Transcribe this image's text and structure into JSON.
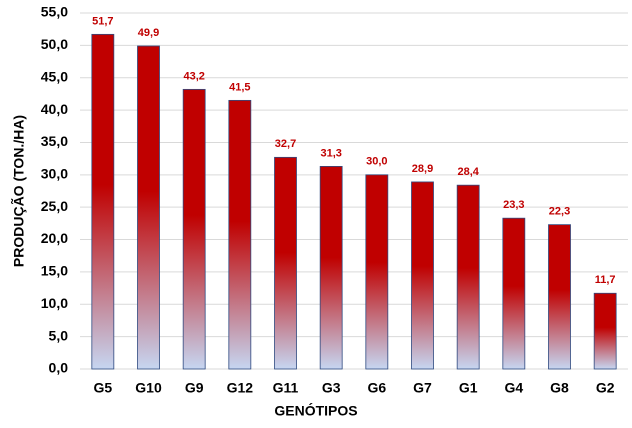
{
  "chart_data": {
    "type": "bar",
    "x_label": "GENÓTIPOS",
    "y_label": "PRODUÇÃO (TON./HA)",
    "categories": [
      "G5",
      "G10",
      "G9",
      "G12",
      "G11",
      "G3",
      "G6",
      "G7",
      "G1",
      "G4",
      "G8",
      "G2"
    ],
    "values": [
      51.7,
      49.9,
      43.2,
      41.5,
      32.7,
      31.3,
      30.0,
      28.9,
      28.4,
      23.3,
      22.3,
      11.7
    ],
    "value_labels": [
      "51,7",
      "49,9",
      "43,2",
      "41,5",
      "32,7",
      "31,3",
      "30,0",
      "28,9",
      "28,4",
      "23,3",
      "22,3",
      "11,7"
    ],
    "color": "#c00000",
    "gradient_to": "#c6d6f1",
    "ylim": [
      0,
      55
    ],
    "yticks": [
      {
        "value": 0,
        "label": "0,0"
      },
      {
        "value": 5,
        "label": "5,0"
      },
      {
        "value": 10,
        "label": "10,0"
      },
      {
        "value": 15,
        "label": "15,0"
      },
      {
        "value": 20,
        "label": "20,0"
      },
      {
        "value": 25,
        "label": "25,0"
      },
      {
        "value": 30,
        "label": "30,0"
      },
      {
        "value": 35,
        "label": "35,0"
      },
      {
        "value": 40,
        "label": "40,0"
      },
      {
        "value": 45,
        "label": "45,0"
      },
      {
        "value": 50,
        "label": "50,0"
      },
      {
        "value": 55,
        "label": "55,0"
      }
    ],
    "grid": true
  }
}
